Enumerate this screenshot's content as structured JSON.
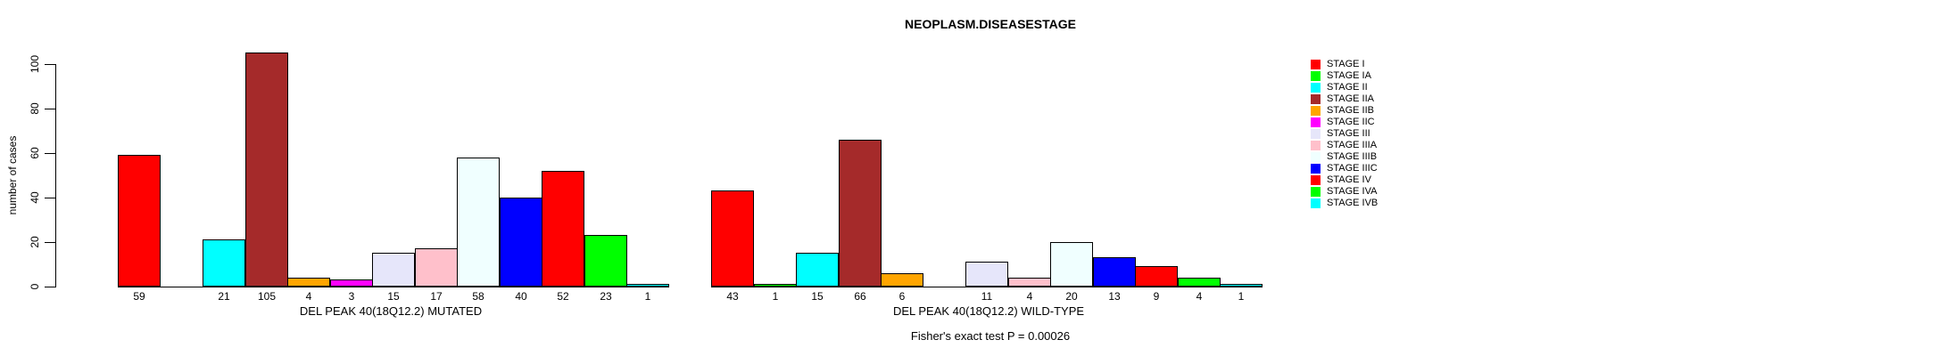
{
  "chart_data": {
    "type": "bar",
    "title": "NEOPLASM.DISEASESTAGE",
    "ylabel": "number of cases",
    "ylim": [
      0,
      110
    ],
    "yticks": [
      0,
      20,
      40,
      60,
      80,
      100
    ],
    "grid": false,
    "legend_position": "right",
    "zero_value_bars_hidden": true,
    "categories": [
      "STAGE I",
      "STAGE IA",
      "STAGE II",
      "STAGE IIA",
      "STAGE IIB",
      "STAGE IIC",
      "STAGE III",
      "STAGE IIIA",
      "STAGE IIIB",
      "STAGE IIIC",
      "STAGE IV",
      "STAGE IVA",
      "STAGE IVB"
    ],
    "palette": [
      "#FF0000",
      "#00FF00",
      "#00FFFF",
      "#A52A2A",
      "#FFA500",
      "#FF00FF",
      "#E6E6FA",
      "#FFC0CB",
      "#F0FFFF",
      "#0000FF",
      "#FF0000",
      "#00FF00",
      "#00FFFF"
    ],
    "series": [
      {
        "name": "DEL PEAK 40(18Q12.2) MUTATED",
        "values": [
          59,
          0,
          21,
          105,
          4,
          3,
          15,
          17,
          58,
          40,
          52,
          23,
          1
        ]
      },
      {
        "name": "DEL PEAK 40(18Q12.2) WILD-TYPE",
        "values": [
          43,
          1,
          15,
          66,
          6,
          0,
          11,
          4,
          20,
          13,
          9,
          4,
          1
        ]
      }
    ],
    "annotation": "Fisher's exact test P = 0.00026"
  }
}
